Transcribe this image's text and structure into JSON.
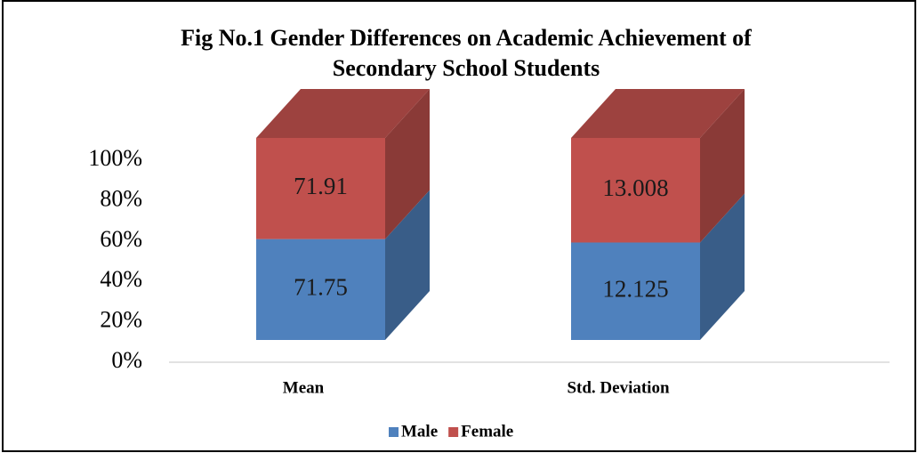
{
  "chart_data": {
    "type": "bar",
    "stacked": "percent",
    "title": [
      "Fig No.1 Gender Differences on Academic Achievement of",
      "Secondary School Students"
    ],
    "categories": [
      "Mean",
      "Std. Deviation"
    ],
    "series": [
      {
        "name": "Male",
        "color": "#4f81bd",
        "values": [
          71.75,
          12.125
        ]
      },
      {
        "name": "Female",
        "color": "#c0504d",
        "values": [
          71.91,
          13.008
        ]
      }
    ],
    "ylim": [
      0,
      100
    ],
    "yticks": [
      {
        "value": 0,
        "label": "0%"
      },
      {
        "value": 20,
        "label": "20%"
      },
      {
        "value": 40,
        "label": "40%"
      },
      {
        "value": 60,
        "label": "60%"
      },
      {
        "value": 80,
        "label": "80%"
      },
      {
        "value": 100,
        "label": "100%"
      }
    ],
    "legend": "bottom"
  }
}
